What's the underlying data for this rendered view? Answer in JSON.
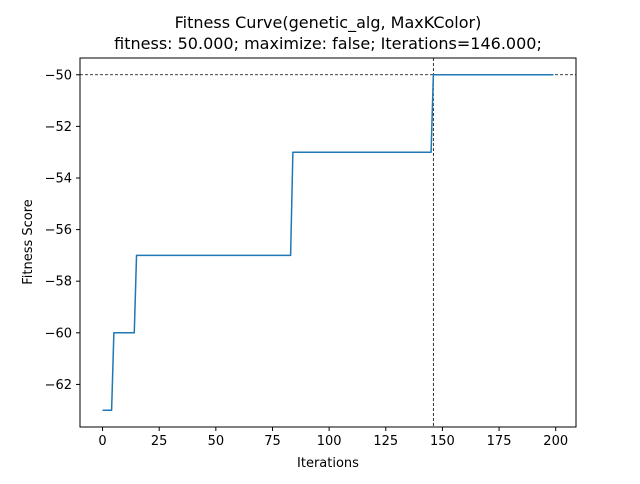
{
  "chart_data": {
    "type": "line",
    "title": "Fitness Curve(genetic_alg, MaxKColor)",
    "subtitle": "fitness: 50.000; maximize: false; Iterations=146.000;",
    "xlabel": "Iterations",
    "ylabel": "Fitness Score",
    "xlim": [
      -9.95,
      208.95
    ],
    "ylim": [
      -63.65,
      -49.35
    ],
    "x_ticks": [
      0,
      25,
      50,
      75,
      100,
      125,
      150,
      175,
      200
    ],
    "y_ticks": [
      -62,
      -60,
      -58,
      -56,
      -54,
      -52,
      -50
    ],
    "x_tick_labels": [
      "0",
      "25",
      "50",
      "75",
      "100",
      "125",
      "150",
      "175",
      "200"
    ],
    "y_tick_labels": [
      "−62",
      "−60",
      "−58",
      "−56",
      "−54",
      "−52",
      "−50"
    ],
    "grid": false,
    "series": [
      {
        "color": "#1f77b4",
        "x": [
          0,
          1,
          2,
          3,
          4,
          5,
          6,
          7,
          8,
          9,
          10,
          11,
          12,
          13,
          14,
          15,
          83,
          84,
          145,
          146,
          199
        ],
        "y": [
          -63,
          -63,
          -63,
          -63,
          -63,
          -60,
          -60,
          -60,
          -60,
          -60,
          -60,
          -60,
          -60,
          -60,
          -60,
          -57,
          -57,
          -53,
          -53,
          -50,
          -50
        ]
      }
    ],
    "reference_lines": {
      "horizontal_y": -50,
      "vertical_x": 146,
      "color": "#000000",
      "style": "dashed"
    }
  }
}
